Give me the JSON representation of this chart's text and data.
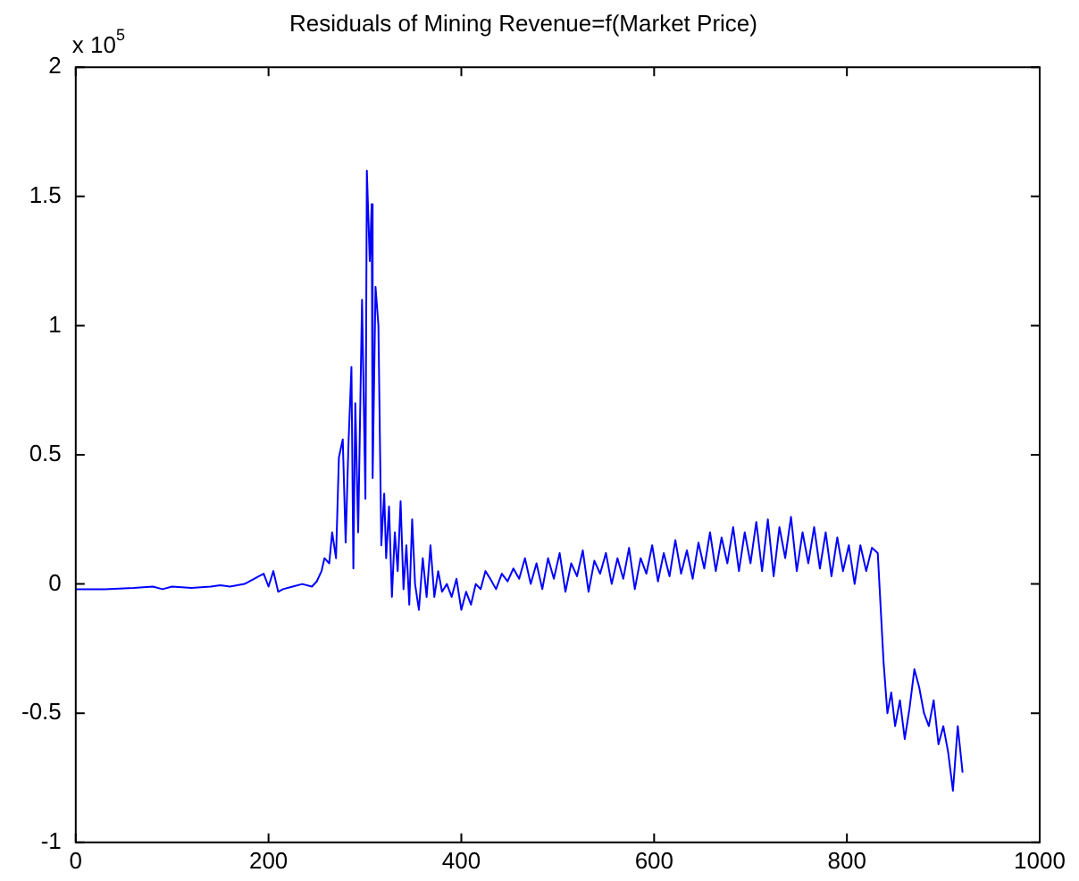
{
  "chart_data": {
    "type": "line",
    "title": "Residuals of Mining Revenue=f(Market Price)",
    "annotations": [
      "x 10$^{5}$"
    ],
    "series": [
      {
        "color": "#0000ff",
        "x": [
          0,
          30,
          60,
          80,
          90,
          100,
          120,
          140,
          150,
          160,
          175,
          185,
          190,
          195,
          200,
          205,
          210,
          215,
          225,
          235,
          245,
          250,
          255,
          258,
          263,
          266,
          270,
          273,
          277,
          280,
          283,
          286,
          288,
          290,
          293,
          297,
          300.5,
          302,
          305,
          307,
          308,
          311,
          314,
          317,
          320,
          322,
          325,
          328,
          331,
          334,
          337,
          340,
          343,
          346,
          349,
          352,
          356,
          360,
          364,
          368,
          372,
          376,
          380,
          385,
          390,
          395,
          400,
          405,
          410,
          415,
          420,
          425,
          430,
          436,
          442,
          448,
          454,
          460,
          466,
          472,
          478,
          484,
          490,
          496,
          502,
          508,
          514,
          520,
          526,
          532,
          538,
          544,
          550,
          556,
          562,
          568,
          574,
          580,
          586,
          592,
          598,
          604,
          610,
          616,
          622,
          628,
          634,
          640,
          646,
          652,
          658,
          664,
          670,
          676,
          682,
          688,
          694,
          700,
          706,
          712,
          718,
          724,
          730,
          736,
          742,
          748,
          754,
          760,
          766,
          772,
          778,
          784,
          790,
          796,
          802,
          808,
          814,
          820,
          826,
          832,
          838,
          842,
          846,
          850,
          855,
          860,
          865,
          870,
          875,
          880,
          885,
          890,
          895,
          900,
          905,
          910,
          915,
          920
        ],
        "values": [
          -0.02,
          -0.02,
          -0.015,
          -0.01,
          -0.02,
          -0.01,
          -0.015,
          -0.01,
          -0.005,
          -0.01,
          0,
          0.02,
          0.03,
          0.04,
          -0.01,
          0.05,
          -0.03,
          -0.02,
          -0.01,
          0,
          -0.01,
          0.01,
          0.05,
          0.1,
          0.08,
          0.2,
          0.1,
          0.49,
          0.56,
          0.16,
          0.55,
          0.84,
          0.06,
          0.7,
          0.2,
          1.1,
          0.33,
          1.6,
          1.25,
          1.47,
          0.41,
          1.15,
          1.0,
          0.15,
          0.35,
          0.1,
          0.3,
          -0.05,
          0.2,
          0.05,
          0.32,
          -0.02,
          0.15,
          -0.08,
          0.25,
          0,
          -0.1,
          0.1,
          -0.05,
          0.15,
          -0.05,
          0.05,
          -0.03,
          0,
          -0.05,
          0.02,
          -0.1,
          -0.03,
          -0.08,
          0,
          -0.02,
          0.05,
          0.02,
          -0.02,
          0.04,
          0.01,
          0.06,
          0.02,
          0.1,
          0,
          0.08,
          -0.02,
          0.1,
          0.02,
          0.12,
          -0.03,
          0.08,
          0.03,
          0.13,
          -0.03,
          0.09,
          0.04,
          0.12,
          0,
          0.1,
          0.02,
          0.14,
          -0.02,
          0.1,
          0.04,
          0.15,
          0.01,
          0.12,
          0.03,
          0.17,
          0.04,
          0.13,
          0.02,
          0.16,
          0.06,
          0.2,
          0.05,
          0.18,
          0.08,
          0.22,
          0.05,
          0.2,
          0.08,
          0.24,
          0.05,
          0.25,
          0.03,
          0.22,
          0.1,
          0.26,
          0.05,
          0.2,
          0.08,
          0.22,
          0.06,
          0.2,
          0.03,
          0.18,
          0.05,
          0.15,
          0,
          0.15,
          0.05,
          0.14,
          0.12,
          -0.3,
          -0.5,
          -0.42,
          -0.55,
          -0.45,
          -0.6,
          -0.48,
          -0.33,
          -0.4,
          -0.5,
          -0.55,
          -0.45,
          -0.62,
          -0.55,
          -0.65,
          -0.8,
          -0.55,
          -0.73
        ]
      }
    ],
    "xlim": [
      0,
      1000
    ],
    "xticks": [
      0,
      200,
      400,
      600,
      800,
      1000
    ],
    "ylim": [
      -1,
      2
    ],
    "yticks": [
      -1,
      -0.5,
      0,
      0.5,
      1,
      1.5,
      2
    ],
    "grid": false,
    "legend": false
  }
}
